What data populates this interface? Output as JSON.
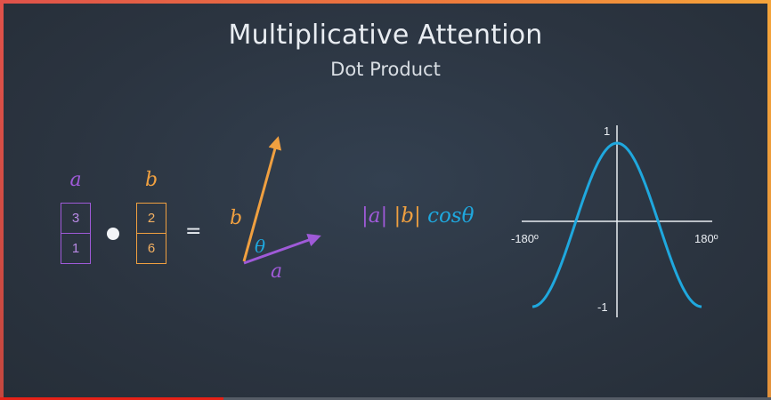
{
  "slide": {
    "title": "Multiplicative Attention",
    "subtitle": "Dot Product"
  },
  "vectors": {
    "a": {
      "label": "a",
      "values": [
        "3",
        "1"
      ],
      "color": "#9f5ad8"
    },
    "b": {
      "label": "b",
      "values": [
        "2",
        "6"
      ],
      "color": "#f0a040"
    },
    "equals": "="
  },
  "vector_diagram": {
    "a_label": "a",
    "b_label": "b",
    "angle_label": "θ",
    "colors": {
      "a": "#9f5ad8",
      "b": "#f0a040",
      "angle": "#1fa8de"
    }
  },
  "formula": {
    "a": "|a|",
    "b": "|b|",
    "cos": "cosθ"
  },
  "cosine_plot": {
    "x_min_label": "-180º",
    "x_max_label": "180º",
    "y_max_label": "1",
    "y_min_label": "-1",
    "x_range_degrees": [
      -180,
      180
    ],
    "y_range": [
      -1,
      1
    ],
    "curve": "cos",
    "curve_color": "#1fa8de"
  },
  "player": {
    "progress_fraction": 0.29,
    "progress_color": "#e62117"
  }
}
